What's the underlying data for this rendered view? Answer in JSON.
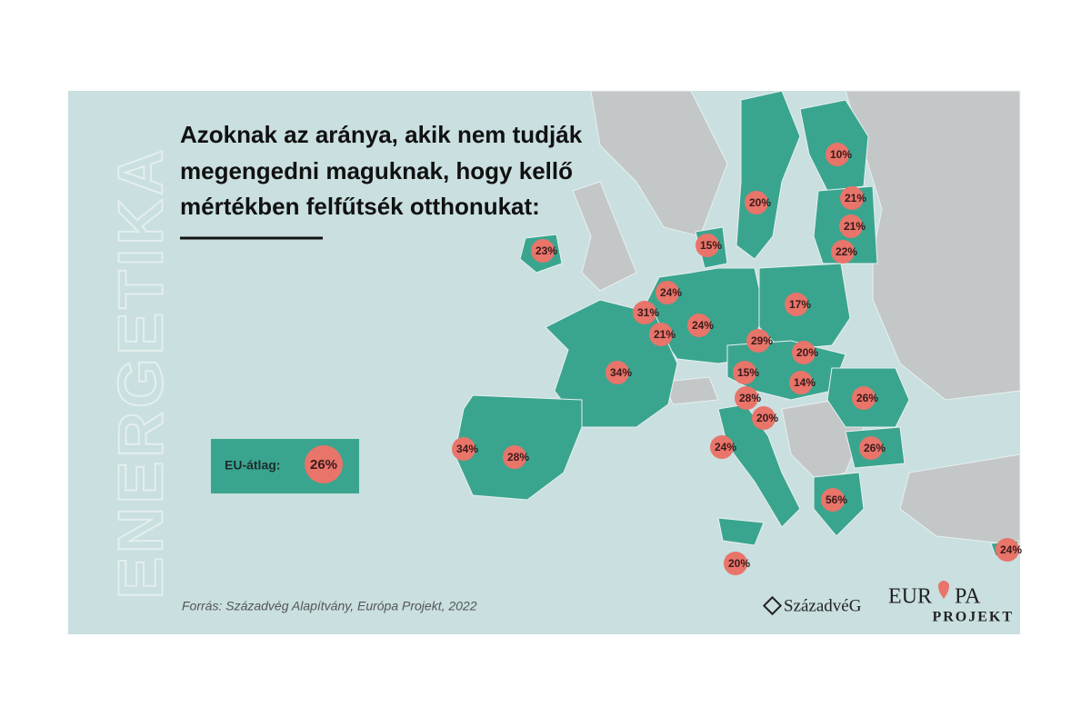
{
  "title": [
    "Azoknak az aránya, akik nem tudják",
    "megengedni maguknak, hogy kellő",
    "mértékben felfűtsék otthonukat:"
  ],
  "side_label": "ENERGETIKA",
  "average": {
    "label": "EU-átlag:",
    "value": "26%"
  },
  "markers": [
    "10%",
    "20%",
    "21%",
    "21%",
    "22%",
    "23%",
    "15%",
    "24%",
    "17%",
    "31%",
    "24%",
    "21%",
    "29%",
    "20%",
    "34%",
    "15%",
    "14%",
    "26%",
    "28%",
    "20%",
    "24%",
    "34%",
    "28%",
    "26%",
    "56%",
    "24%",
    "20%"
  ],
  "source": "Forrás: Századvég Alapítvány, Európa Projekt, 2022",
  "logos": {
    "szazadveg": "SzázadvéG",
    "europa_left": "EUR",
    "europa_right": "PA",
    "projekt": "PROJEKT"
  }
}
